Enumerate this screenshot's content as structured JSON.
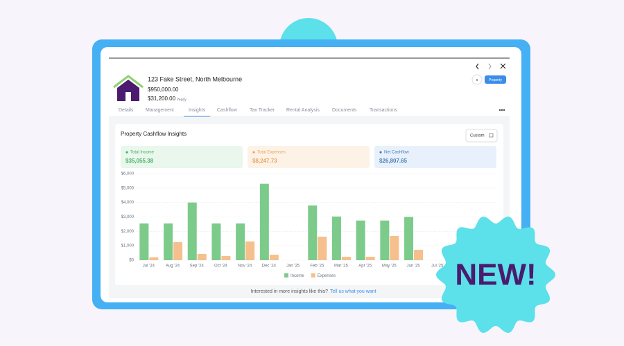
{
  "property": {
    "address": "123 Fake Street, North Melbourne",
    "price": "$950,000.00",
    "rent": "$31,200.00",
    "rent_period": "Yearly",
    "avatar": "s",
    "tag": "Property"
  },
  "tabs": [
    "Details",
    "Management",
    "Insights",
    "Cashflow",
    "Tax Tracker",
    "Rental Analysis",
    "Documents",
    "Transactions"
  ],
  "active_tab": 2,
  "card": {
    "title": "Property Cashflow Insights",
    "filter": "Custom",
    "summary": [
      {
        "label": "Total Income",
        "value": "$35,055.38"
      },
      {
        "label": "Total Expenses",
        "value": "$8,247.73"
      },
      {
        "label": "Net Cashflow",
        "value": "$26,807.65"
      }
    ]
  },
  "chart_data": {
    "type": "bar",
    "categories": [
      "Jul '24",
      "Aug '24",
      "Sep '24",
      "Oct '24",
      "Nov '24",
      "Dec '24",
      "Jan '25",
      "Feb '25",
      "Mar '25",
      "Apr '25",
      "May '25",
      "Jun '25",
      "Jul '25"
    ],
    "series": [
      {
        "name": "Income",
        "color": "#7dcb8a",
        "values": [
          2550,
          2550,
          4000,
          2550,
          2550,
          5300,
          0,
          3800,
          3030,
          2750,
          2750,
          3000,
          null
        ]
      },
      {
        "name": "Expenses",
        "color": "#f5c08d",
        "values": [
          200,
          1250,
          430,
          290,
          1300,
          380,
          0,
          1630,
          240,
          240,
          1680,
          720,
          null
        ]
      }
    ],
    "ylim": [
      0,
      6000
    ],
    "yticks": [
      {
        "value": 0,
        "label": "$0"
      },
      {
        "value": 1000,
        "label": "$1,000"
      },
      {
        "value": 2000,
        "label": "$2,000"
      },
      {
        "value": 3000,
        "label": "$3,000"
      },
      {
        "value": 4000,
        "label": "$4,000"
      },
      {
        "value": 5000,
        "label": "$5,000"
      },
      {
        "value": 6000,
        "label": "$6,000"
      }
    ],
    "grid": true,
    "legend": "bottom"
  },
  "footer": {
    "question": "Interested in more insights like this?",
    "link": "Tell us what you want"
  },
  "badge": "NEW!"
}
